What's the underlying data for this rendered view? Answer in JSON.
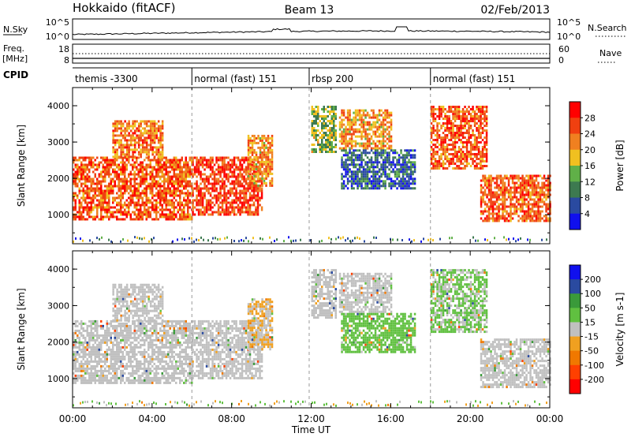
{
  "header": {
    "radar": "Hokkaido (fitACF)",
    "beam": "Beam 13",
    "date": "02/Feb/2013"
  },
  "strips": {
    "nsky": {
      "label": "N.Sky",
      "tick_top": "10^5",
      "tick_bottom": "10^0"
    },
    "nsearch": {
      "label": "N.Search",
      "tick_top": "10^5",
      "tick_bottom": "10^0"
    },
    "freq": {
      "label_line1": "Freq.",
      "label_line2": "[MHz]",
      "tick_top": "18",
      "tick_bottom": "8"
    },
    "nave": {
      "label": "Nave",
      "tick_top": "60",
      "tick_bottom": "0"
    },
    "cpid": {
      "label": "CPID",
      "segments": [
        {
          "start": 0,
          "end": 6,
          "name": "themis -3300"
        },
        {
          "start": 6,
          "end": 11.9,
          "name": "normal (fast) 151"
        },
        {
          "start": 11.9,
          "end": 18,
          "name": "rbsp 200"
        },
        {
          "start": 18,
          "end": 24,
          "name": "normal (fast) 151"
        }
      ]
    }
  },
  "chart_data": [
    {
      "type": "heatmap",
      "panel": "power",
      "xlabel": "Time UT",
      "ylabel": "Slant Range [km]",
      "xlim": [
        0,
        24
      ],
      "ylim": [
        200,
        4500
      ],
      "x_ticks": [
        0,
        4,
        8,
        12,
        16,
        20,
        24
      ],
      "x_tick_labels": [
        "00:00",
        "04:00",
        "08:00",
        "12:00",
        "16:00",
        "20:00",
        "00:00"
      ],
      "y_ticks": [
        1000,
        2000,
        3000,
        4000
      ],
      "y_tick_labels": [
        "1000",
        "2000",
        "3000",
        "4000"
      ],
      "colorbar": {
        "label": "Power [dB]",
        "tick_labels": [
          "4",
          "8",
          "12",
          "16",
          "20",
          "24",
          "28"
        ],
        "range": [
          0,
          32
        ],
        "colors": [
          "#1010ee",
          "#2a4aa0",
          "#3d7a50",
          "#60b048",
          "#f0c020",
          "#f08020",
          "#f04010",
          "#ff0000"
        ]
      },
      "regions": [
        {
          "t0": 0.0,
          "t1": 6.0,
          "r0": 900,
          "r1": 2600,
          "value": 26
        },
        {
          "t0": 2.0,
          "t1": 4.5,
          "r0": 2600,
          "r1": 3600,
          "value": 24
        },
        {
          "t0": 6.0,
          "t1": 9.5,
          "r0": 1000,
          "r1": 2600,
          "value": 28
        },
        {
          "t0": 8.8,
          "t1": 10.0,
          "r0": 1800,
          "r1": 3200,
          "value": 22
        },
        {
          "t0": 12.0,
          "t1": 13.2,
          "r0": 2700,
          "r1": 4000,
          "value": 14
        },
        {
          "t0": 13.4,
          "t1": 16.0,
          "r0": 2800,
          "r1": 3900,
          "value": 22
        },
        {
          "t0": 13.5,
          "t1": 17.2,
          "r0": 1700,
          "r1": 2800,
          "value": 6
        },
        {
          "t0": 18.0,
          "t1": 20.8,
          "r0": 2300,
          "r1": 4000,
          "value": 26
        },
        {
          "t0": 20.5,
          "t1": 24.0,
          "r0": 800,
          "r1": 2100,
          "value": 26
        }
      ]
    },
    {
      "type": "heatmap",
      "panel": "velocity",
      "xlabel": "Time UT",
      "ylabel": "Slant Range [km]",
      "xlim": [
        0,
        24
      ],
      "ylim": [
        200,
        4500
      ],
      "x_ticks": [
        0,
        4,
        8,
        12,
        16,
        20,
        24
      ],
      "x_tick_labels": [
        "00:00",
        "04:00",
        "08:00",
        "12:00",
        "16:00",
        "20:00",
        "00:00"
      ],
      "y_ticks": [
        1000,
        2000,
        3000,
        4000
      ],
      "y_tick_labels": [
        "1000",
        "2000",
        "3000",
        "4000"
      ],
      "colorbar": {
        "label": "Velocity [m s-1]",
        "tick_labels": [
          "200",
          "100",
          "50",
          "15",
          "-15",
          "-50",
          "-100",
          "-200"
        ],
        "range": [
          -250,
          250
        ],
        "colors": [
          "#ff0000",
          "#ff4000",
          "#f07800",
          "#f0a020",
          "#c0c0c0",
          "#60c040",
          "#3a9a3a",
          "#2a4aa0",
          "#1010ee"
        ]
      },
      "regions": [
        {
          "t0": 0.0,
          "t1": 6.0,
          "r0": 900,
          "r1": 2600,
          "value": 0
        },
        {
          "t0": 2.0,
          "t1": 4.5,
          "r0": 2600,
          "r1": 3600,
          "value": 0
        },
        {
          "t0": 6.0,
          "t1": 9.5,
          "r0": 1000,
          "r1": 2600,
          "value": 0
        },
        {
          "t0": 8.8,
          "t1": 10.0,
          "r0": 1800,
          "r1": 3200,
          "value": -30
        },
        {
          "t0": 12.0,
          "t1": 13.2,
          "r0": 2700,
          "r1": 4000,
          "value": 0
        },
        {
          "t0": 13.4,
          "t1": 16.0,
          "r0": 2800,
          "r1": 3900,
          "value": 0
        },
        {
          "t0": 13.5,
          "t1": 17.2,
          "r0": 1700,
          "r1": 2800,
          "value": 60
        },
        {
          "t0": 18.0,
          "t1": 20.8,
          "r0": 2300,
          "r1": 4000,
          "value": 40
        },
        {
          "t0": 20.5,
          "t1": 24.0,
          "r0": 800,
          "r1": 2100,
          "value": 0
        }
      ]
    }
  ]
}
